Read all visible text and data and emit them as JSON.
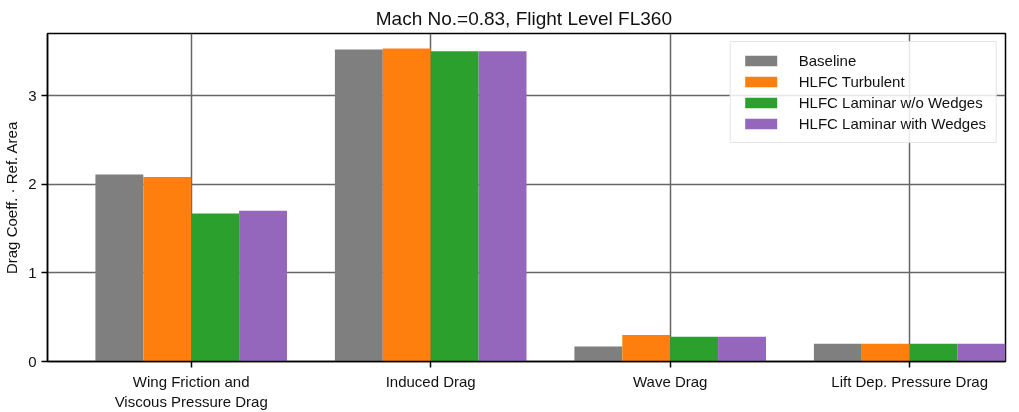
{
  "chart_data": {
    "type": "bar",
    "title": "Mach No.=0.83,  Flight Level FL360",
    "ylabel": "Drag Coeff. · Ref. Area",
    "categories": [
      "Wing Friction and\nViscous Pressure Drag",
      "Induced Drag",
      "Wave Drag",
      "Lift Dep. Pressure Drag"
    ],
    "series": [
      {
        "name": "Baseline",
        "color": "#7f7f7f",
        "values": [
          2.11,
          3.52,
          0.17,
          0.2
        ]
      },
      {
        "name": "HLFC Turbulent",
        "color": "#ff7f0e",
        "values": [
          2.08,
          3.53,
          0.3,
          0.2
        ]
      },
      {
        "name": "HLFC Laminar w/o Wedges",
        "color": "#2ca02c",
        "values": [
          1.67,
          3.5,
          0.28,
          0.2
        ]
      },
      {
        "name": "HLFC Laminar with Wedges",
        "color": "#9467bd",
        "values": [
          1.7,
          3.5,
          0.28,
          0.2
        ]
      }
    ],
    "ylim": [
      0,
      3.7
    ],
    "yticks": [
      0,
      1,
      2,
      3
    ],
    "grid": true,
    "legend": "top right"
  }
}
